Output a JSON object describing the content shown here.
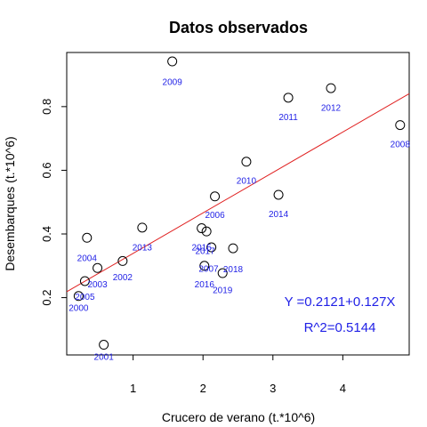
{
  "chart_data": {
    "type": "scatter",
    "title": "Datos observados",
    "xlabel": "Crucero de verano (t.*10^6)",
    "ylabel": "Desembarques (t.*10^6)",
    "xlim": [
      0.05,
      4.95
    ],
    "ylim": [
      0.02,
      0.97
    ],
    "xticks": [
      1,
      2,
      3,
      4
    ],
    "yticks": [
      0.2,
      0.4,
      0.6,
      0.8
    ],
    "xtick_labels": [
      "1",
      "2",
      "3",
      "4"
    ],
    "ytick_labels": [
      "0.2",
      "0.4",
      "0.6",
      "0.8"
    ],
    "grid": false,
    "fit_line": {
      "intercept": 0.2121,
      "slope": 0.127
    },
    "annotations": [
      "Y =0.2121+0.127X",
      "R^2=0.5144"
    ],
    "points": [
      {
        "label": "2000",
        "x": 0.22,
        "y": 0.205,
        "lx": 0.22,
        "ly": 0.165
      },
      {
        "label": "2001",
        "x": 0.58,
        "y": 0.052,
        "lx": 0.58,
        "ly": 0.012
      },
      {
        "label": "2002",
        "x": 0.85,
        "y": 0.315,
        "lx": 0.85,
        "ly": 0.262
      },
      {
        "label": "2003",
        "x": 0.49,
        "y": 0.293,
        "lx": 0.49,
        "ly": 0.24
      },
      {
        "label": "2004",
        "x": 0.34,
        "y": 0.388,
        "lx": 0.34,
        "ly": 0.322
      },
      {
        "label": "2005",
        "x": 0.31,
        "y": 0.252,
        "lx": 0.31,
        "ly": 0.2
      },
      {
        "label": "2006",
        "x": 2.17,
        "y": 0.518,
        "lx": 2.17,
        "ly": 0.458
      },
      {
        "label": "2007",
        "x": 2.02,
        "y": 0.3,
        "lx": 2.08,
        "ly": 0.288
      },
      {
        "label": "2008",
        "x": 4.82,
        "y": 0.742,
        "lx": 4.82,
        "ly": 0.68
      },
      {
        "label": "2009",
        "x": 1.56,
        "y": 0.942,
        "lx": 1.56,
        "ly": 0.875
      },
      {
        "label": "2010",
        "x": 2.62,
        "y": 0.627,
        "lx": 2.62,
        "ly": 0.565
      },
      {
        "label": "2011",
        "x": 3.22,
        "y": 0.828,
        "lx": 3.22,
        "ly": 0.765
      },
      {
        "label": "2012",
        "x": 3.83,
        "y": 0.858,
        "lx": 3.83,
        "ly": 0.795
      },
      {
        "label": "2013",
        "x": 1.13,
        "y": 0.42,
        "lx": 1.13,
        "ly": 0.355
      },
      {
        "label": "2014",
        "x": 3.08,
        "y": 0.523,
        "lx": 3.08,
        "ly": 0.46
      },
      {
        "label": "2015",
        "x": 1.98,
        "y": 0.418,
        "lx": 1.98,
        "ly": 0.356
      },
      {
        "label": "2016",
        "x": 2.05,
        "y": 0.408,
        "lx": 2.02,
        "ly": 0.24
      },
      {
        "label": "2017",
        "x": 2.12,
        "y": 0.358,
        "lx": 2.03,
        "ly": 0.344
      },
      {
        "label": "2018",
        "x": 2.43,
        "y": 0.355,
        "lx": 2.43,
        "ly": 0.287
      },
      {
        "label": "2019",
        "x": 2.28,
        "y": 0.277,
        "lx": 2.28,
        "ly": 0.222
      }
    ]
  }
}
